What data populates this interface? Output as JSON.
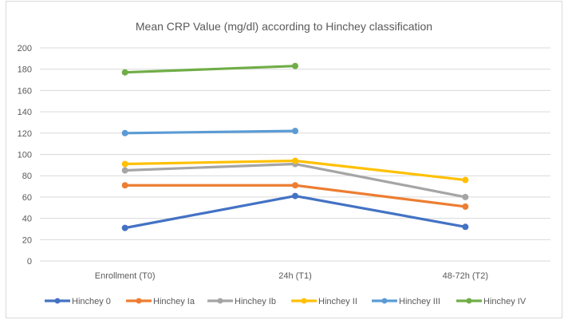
{
  "chart_data": {
    "type": "line",
    "title": "Mean CRP Value (mg/dl) according to Hinchey classification",
    "xlabel": "",
    "ylabel": "",
    "categories": [
      "Enrollment (T0)",
      "24h (T1)",
      "48-72h (T2)"
    ],
    "ylim": [
      0,
      200
    ],
    "yticks": [
      0,
      20,
      40,
      60,
      80,
      100,
      120,
      140,
      160,
      180,
      200
    ],
    "ytick_labels": [
      "0",
      "20",
      "40",
      "60",
      "80",
      "100",
      "120",
      "140",
      "160",
      "180",
      "200"
    ],
    "grid": true,
    "legend_position": "bottom",
    "series": [
      {
        "name": "Hinchey 0",
        "color": "#4472C4",
        "values": [
          31,
          61,
          32
        ]
      },
      {
        "name": "Hinchey Ia",
        "color": "#ED7D31",
        "values": [
          71,
          71,
          51
        ]
      },
      {
        "name": "Hinchey Ib",
        "color": "#A5A5A5",
        "values": [
          85,
          91,
          60
        ]
      },
      {
        "name": "Hinchey II",
        "color": "#FFC000",
        "values": [
          91,
          94,
          76
        ]
      },
      {
        "name": "Hinchey III",
        "color": "#5B9BD5",
        "values": [
          120,
          122,
          null
        ]
      },
      {
        "name": "Hinchey IV",
        "color": "#70AD47",
        "values": [
          177,
          183,
          null
        ]
      }
    ]
  }
}
